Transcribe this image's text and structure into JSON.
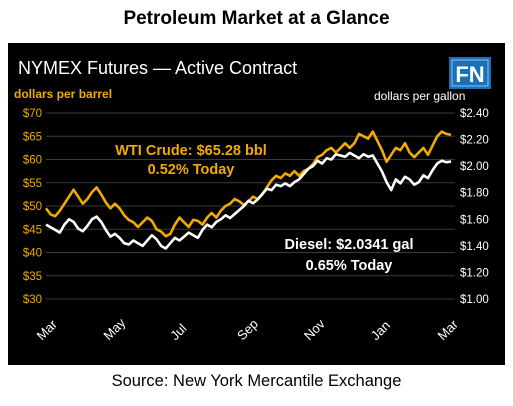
{
  "page": {
    "title": "Petroleum Market at a Glance",
    "source": "Source: New York Mercantile Exchange"
  },
  "logo": {
    "text": "FN",
    "colors": [
      "#1b6fb7",
      "#ffffff"
    ]
  },
  "colors": {
    "panel_bg": "#000000",
    "wti": "#f2a900",
    "diesel": "#ffffff",
    "grid": "#3a3a3a",
    "text_white": "#ffffff"
  },
  "chart_data": {
    "type": "line",
    "title": "NYMEX Futures — Active Contract",
    "ylabel_left": "dollars per barrel",
    "ylabel_right": "dollars per gallon",
    "x_ticks": [
      "Mar",
      "May",
      "Jul",
      "Sep",
      "Nov",
      "Jan",
      "Mar"
    ],
    "ylim_left": [
      30,
      70
    ],
    "ylim_right": [
      1.0,
      2.4
    ],
    "yticks_left": [
      "$30",
      "$35",
      "$40",
      "$45",
      "$50",
      "$55",
      "$60",
      "$65",
      "$70"
    ],
    "yticks_right": [
      "$1.00",
      "$1.20",
      "$1.40",
      "$1.60",
      "$1.80",
      "$2.00",
      "$2.20",
      "$2.40"
    ],
    "grid": true,
    "annotations": {
      "wti_line1": "WTI Crude: $65.28 bbl",
      "wti_line2": "0.52% Today",
      "diesel_line1": "Diesel: $2.0341 gal",
      "diesel_line2": "0.65% Today"
    },
    "series": [
      {
        "axis": "left",
        "color": "#f2a900",
        "values": [
          49.5,
          48.2,
          47.8,
          49.0,
          50.5,
          52.0,
          53.5,
          52.0,
          50.5,
          51.5,
          53.0,
          54.0,
          52.5,
          50.8,
          49.5,
          50.5,
          49.5,
          48.0,
          47.0,
          46.5,
          45.5,
          46.5,
          47.5,
          46.8,
          45.0,
          44.5,
          43.5,
          44.0,
          46.0,
          47.5,
          46.5,
          45.5,
          47.0,
          46.8,
          46.0,
          47.5,
          48.5,
          47.5,
          49.0,
          50.0,
          50.5,
          51.5,
          51.0,
          50.2,
          51.0,
          52.0,
          51.5,
          52.5,
          54.0,
          55.5,
          56.5,
          56.0,
          57.0,
          56.5,
          57.5,
          56.5,
          57.5,
          58.0,
          59.0,
          60.5,
          61.0,
          62.0,
          62.5,
          61.5,
          62.5,
          63.5,
          62.5,
          63.5,
          65.5,
          65.0,
          64.5,
          66.0,
          64.0,
          62.0,
          59.5,
          61.0,
          62.5,
          62.0,
          63.5,
          61.5,
          60.5,
          61.5,
          62.5,
          61.0,
          63.0,
          65.0,
          66.0,
          65.5,
          65.28
        ]
      },
      {
        "axis": "right",
        "color": "#ffffff",
        "values": [
          1.56,
          1.54,
          1.52,
          1.5,
          1.56,
          1.6,
          1.58,
          1.53,
          1.51,
          1.55,
          1.6,
          1.62,
          1.58,
          1.52,
          1.47,
          1.49,
          1.46,
          1.42,
          1.41,
          1.44,
          1.42,
          1.4,
          1.44,
          1.48,
          1.45,
          1.4,
          1.38,
          1.42,
          1.46,
          1.44,
          1.47,
          1.5,
          1.48,
          1.46,
          1.52,
          1.56,
          1.54,
          1.58,
          1.6,
          1.63,
          1.61,
          1.64,
          1.67,
          1.7,
          1.74,
          1.72,
          1.75,
          1.79,
          1.83,
          1.82,
          1.86,
          1.85,
          1.87,
          1.85,
          1.88,
          1.9,
          1.94,
          1.98,
          2.0,
          2.04,
          2.02,
          2.06,
          2.05,
          2.09,
          2.08,
          2.07,
          2.1,
          2.08,
          2.06,
          2.09,
          2.07,
          2.08,
          2.02,
          1.96,
          1.88,
          1.82,
          1.9,
          1.87,
          1.92,
          1.9,
          1.86,
          1.88,
          1.93,
          1.91,
          1.97,
          2.02,
          2.04,
          2.03,
          2.0341
        ]
      }
    ]
  }
}
